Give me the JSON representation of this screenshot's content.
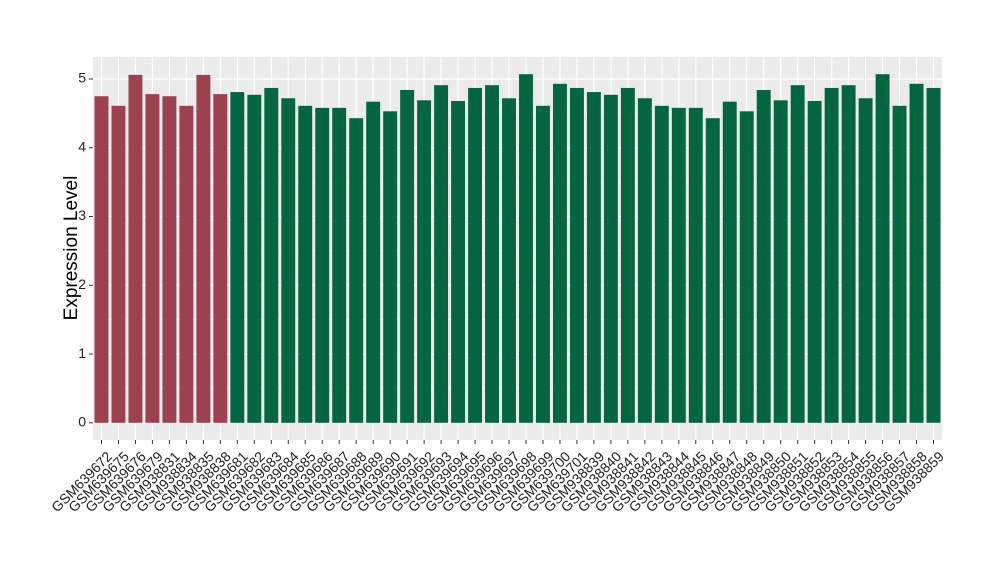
{
  "chart_data": {
    "type": "bar",
    "y_label": "Expression Level",
    "categories": [
      "GSM639672",
      "GSM639675",
      "GSM639676",
      "GSM639679",
      "GSM938831",
      "GSM938834",
      "GSM938835",
      "GSM938838",
      "GSM639681",
      "GSM639682",
      "GSM639683",
      "GSM639684",
      "GSM639685",
      "GSM639686",
      "GSM639687",
      "GSM639688",
      "GSM639689",
      "GSM639690",
      "GSM639691",
      "GSM639692",
      "GSM639693",
      "GSM639694",
      "GSM639695",
      "GSM639696",
      "GSM639697",
      "GSM639698",
      "GSM639699",
      "GSM639700",
      "GSM639701",
      "GSM938839",
      "GSM938840",
      "GSM938841",
      "GSM938842",
      "GSM938843",
      "GSM938844",
      "GSM938845",
      "GSM938846",
      "GSM938847",
      "GSM938848",
      "GSM938849",
      "GSM938850",
      "GSM938851",
      "GSM938852",
      "GSM938853",
      "GSM938854",
      "GSM938855",
      "GSM938856",
      "GSM938857",
      "GSM938858",
      "GSM938859"
    ],
    "values": [
      4.75,
      4.61,
      5.06,
      4.78,
      4.75,
      4.61,
      5.06,
      4.78,
      4.81,
      4.77,
      4.87,
      4.72,
      4.61,
      4.58,
      4.58,
      4.43,
      4.67,
      4.53,
      4.84,
      4.69,
      4.91,
      4.68,
      4.87,
      4.91,
      4.72,
      5.07,
      4.61,
      4.93,
      4.87,
      4.81,
      4.77,
      4.87,
      4.72,
      4.61,
      4.58,
      4.58,
      4.43,
      4.67,
      4.53,
      4.84,
      4.69,
      4.91,
      4.68,
      4.87,
      4.91,
      4.72,
      5.07,
      4.61,
      4.93,
      4.87
    ],
    "colors": [
      "#9b4150",
      "#9b4150",
      "#9b4150",
      "#9b4150",
      "#9b4150",
      "#9b4150",
      "#9b4150",
      "#9b4150",
      "#036641",
      "#036641",
      "#036641",
      "#036641",
      "#036641",
      "#036641",
      "#036641",
      "#036641",
      "#036641",
      "#036641",
      "#036641",
      "#036641",
      "#036641",
      "#036641",
      "#036641",
      "#036641",
      "#036641",
      "#036641",
      "#036641",
      "#036641",
      "#036641",
      "#036641",
      "#036641",
      "#036641",
      "#036641",
      "#036641",
      "#036641",
      "#036641",
      "#036641",
      "#036641",
      "#036641",
      "#036641",
      "#036641",
      "#036641",
      "#036641",
      "#036641",
      "#036641",
      "#036641",
      "#036641",
      "#036641",
      "#036641",
      "#036641"
    ],
    "ylim": [
      -0.25,
      5.32
    ],
    "yticks": [
      0,
      1,
      2,
      3,
      4,
      5
    ],
    "grid": true
  }
}
